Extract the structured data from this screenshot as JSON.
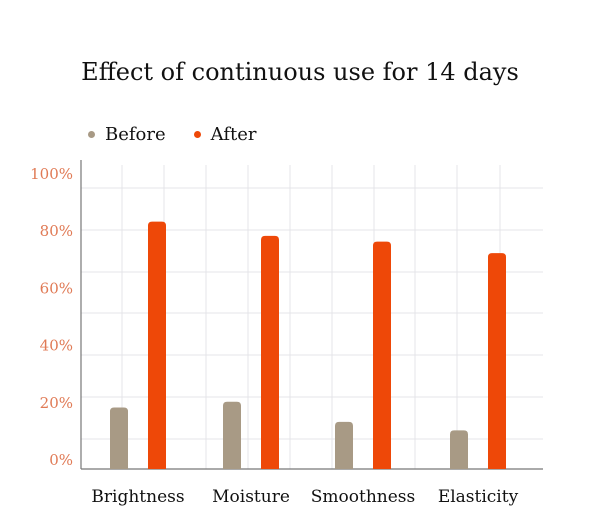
{
  "chart_data": {
    "type": "bar",
    "title": "Effect of continuous use for 14 days",
    "categories": [
      "Brightness",
      "Moisture",
      "Smoothness",
      "Elasticity"
    ],
    "series": [
      {
        "name": "Before",
        "values": [
          18,
          20,
          13,
          10
        ],
        "color": "#a89a85"
      },
      {
        "name": "After",
        "values": [
          83,
          78,
          76,
          72
        ],
        "color": "#ee4808"
      }
    ],
    "yticks": [
      "0%",
      "20%",
      "40%",
      "60%",
      "80%",
      "100%"
    ],
    "ylim": [
      0,
      100
    ],
    "grid": true,
    "legend": "top-left",
    "tick_label_color": "#e07a55"
  }
}
